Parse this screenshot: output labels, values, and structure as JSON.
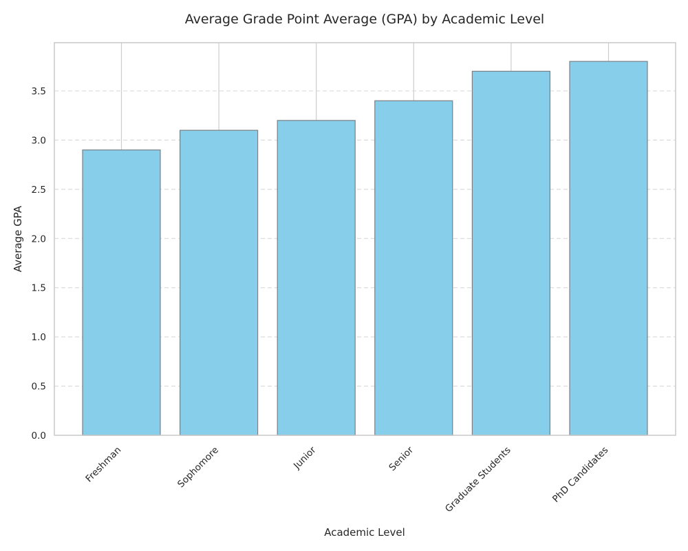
{
  "chart_data": {
    "type": "bar",
    "title": "Average Grade Point Average (GPA) by Academic Level",
    "xlabel": "Academic Level",
    "ylabel": "Average GPA",
    "categories": [
      "Freshman",
      "Sophomore",
      "Junior",
      "Senior",
      "Graduate Students",
      "PhD Candidates"
    ],
    "values": [
      2.9,
      3.1,
      3.2,
      3.4,
      3.7,
      3.8
    ],
    "ylim": [
      0,
      3.99
    ],
    "yticks": [
      "0.0",
      "0.5",
      "1.0",
      "1.5",
      "2.0",
      "2.5",
      "3.0",
      "3.5"
    ],
    "grid": true,
    "bar_color": "#87ceeb",
    "bar_edge_color": "#7a7f85"
  }
}
